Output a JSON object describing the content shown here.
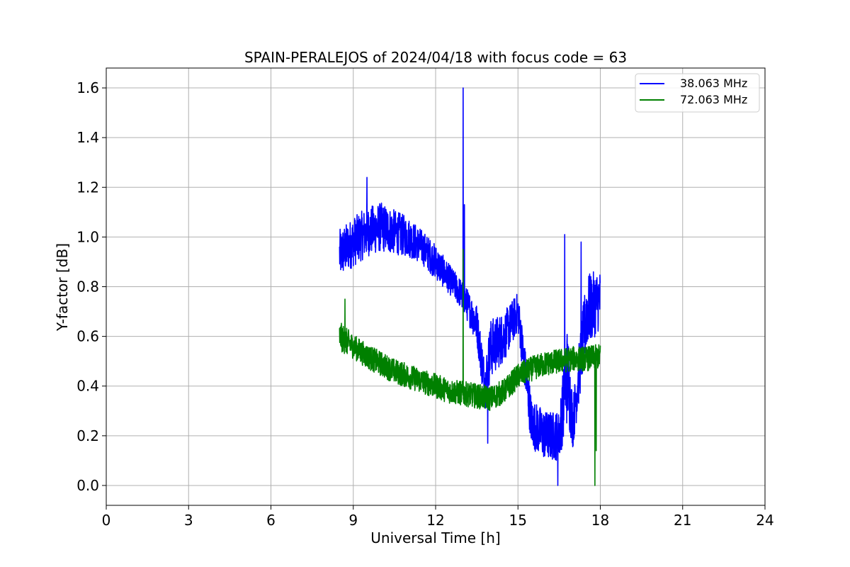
{
  "chart_data": {
    "type": "line",
    "title": "SPAIN-PERALEJOS of 2024/04/18 with focus code = 63",
    "xlabel": "Universal Time [h]",
    "ylabel": "Y-factor [dB]",
    "xlim": [
      0,
      24
    ],
    "ylim": [
      -0.08,
      1.68
    ],
    "xticks": [
      "0",
      "3",
      "6",
      "9",
      "12",
      "15",
      "18",
      "21",
      "24"
    ],
    "yticks": [
      "0.0",
      "0.2",
      "0.4",
      "0.6",
      "0.8",
      "1.0",
      "1.2",
      "1.4",
      "1.6"
    ],
    "grid": true,
    "legend_position": "top-right",
    "series": [
      {
        "name": "38.063 MHz",
        "color": "#0000ff",
        "x": [
          8.5,
          9.0,
          9.5,
          10.0,
          10.5,
          11.0,
          11.5,
          12.0,
          12.5,
          13.0,
          13.5,
          13.8,
          14.0,
          14.5,
          15.0,
          15.5,
          16.0,
          16.5,
          16.8,
          17.0,
          17.5,
          18.0
        ],
        "y": [
          0.93,
          0.98,
          1.02,
          1.04,
          1.02,
          1.0,
          0.96,
          0.9,
          0.83,
          0.76,
          0.65,
          0.4,
          0.55,
          0.6,
          0.7,
          0.25,
          0.2,
          0.2,
          0.45,
          0.25,
          0.7,
          0.75
        ],
        "spread": [
          0.1,
          0.1,
          0.1,
          0.1,
          0.09,
          0.08,
          0.07,
          0.07,
          0.06,
          0.06,
          0.08,
          0.1,
          0.12,
          0.1,
          0.08,
          0.1,
          0.1,
          0.1,
          0.2,
          0.1,
          0.15,
          0.12
        ],
        "spikes": [
          {
            "x": 13.0,
            "y": 1.6
          },
          {
            "x": 13.05,
            "y": 1.13
          },
          {
            "x": 9.5,
            "y": 1.24
          },
          {
            "x": 16.7,
            "y": 1.01
          },
          {
            "x": 16.45,
            "y": 0.0
          },
          {
            "x": 17.3,
            "y": 0.98
          },
          {
            "x": 13.9,
            "y": 0.17
          }
        ]
      },
      {
        "name": "72.063 MHz",
        "color": "#008000",
        "x": [
          8.5,
          9.0,
          9.5,
          10.0,
          10.5,
          11.0,
          11.5,
          12.0,
          12.5,
          13.0,
          13.5,
          14.0,
          14.5,
          15.0,
          15.5,
          16.0,
          16.5,
          17.0,
          17.5,
          18.0
        ],
        "y": [
          0.6,
          0.56,
          0.52,
          0.49,
          0.46,
          0.44,
          0.42,
          0.4,
          0.38,
          0.37,
          0.36,
          0.35,
          0.38,
          0.44,
          0.47,
          0.49,
          0.5,
          0.51,
          0.51,
          0.52
        ],
        "spread": [
          0.06,
          0.05,
          0.05,
          0.05,
          0.05,
          0.05,
          0.05,
          0.05,
          0.05,
          0.05,
          0.05,
          0.05,
          0.05,
          0.05,
          0.05,
          0.05,
          0.05,
          0.05,
          0.05,
          0.05
        ],
        "spikes": [
          {
            "x": 13.0,
            "y": 0.95
          },
          {
            "x": 8.7,
            "y": 0.75
          },
          {
            "x": 17.8,
            "y": 0.0
          },
          {
            "x": 17.85,
            "y": 0.14
          }
        ]
      }
    ]
  }
}
